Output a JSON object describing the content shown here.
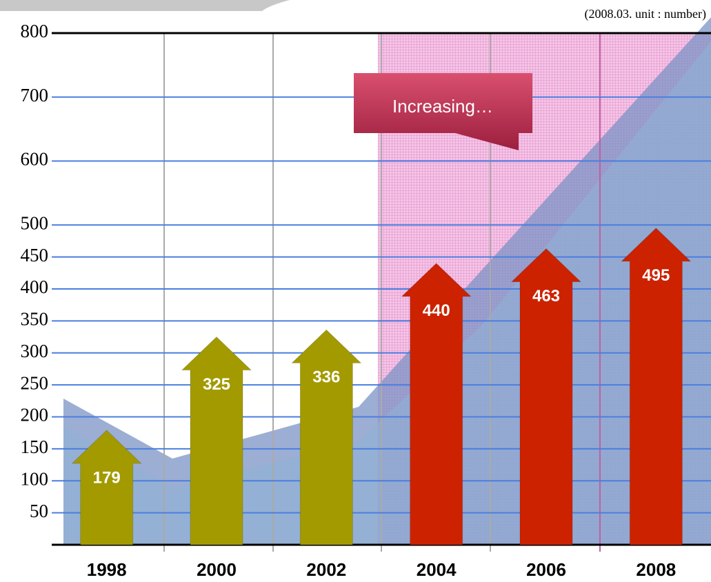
{
  "chart_data": {
    "type": "bar",
    "note": "(2008.03. unit : number)",
    "annotation": "Increasing…",
    "categories": [
      "1998",
      "2000",
      "2002",
      "2004",
      "2006",
      "2008"
    ],
    "values": [
      179,
      325,
      336,
      440,
      463,
      495
    ],
    "colors": [
      "#a39a00",
      "#a39a00",
      "#a39a00",
      "#cc2200",
      "#cc2200",
      "#cc2200"
    ],
    "ylim": [
      0,
      800
    ],
    "yticks": [
      50,
      100,
      150,
      200,
      250,
      300,
      350,
      400,
      450,
      500,
      600,
      700,
      800
    ],
    "grid": true
  }
}
